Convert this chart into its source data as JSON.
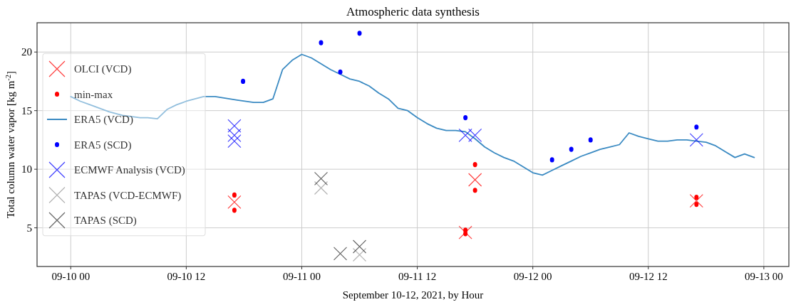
{
  "chart_data": {
    "type": "scatter",
    "title": "Atmospheric data synthesis",
    "xlabel": "September 10-12, 2021, by Hour",
    "ylabel": "Total column water vapor [kg m$^{-2}$]",
    "xlim": [
      "2021-09-09T20:30",
      "2021-09-13T02:36"
    ],
    "ylim": [
      1.7,
      22.5
    ],
    "xticks": [
      {
        "value": "2021-09-10T00:00",
        "label": "09-10 00"
      },
      {
        "value": "2021-09-10T12:00",
        "label": "09-10 12"
      },
      {
        "value": "2021-09-11T00:00",
        "label": "09-11 00"
      },
      {
        "value": "2021-09-11T12:00",
        "label": "09-11 12"
      },
      {
        "value": "2021-09-12T00:00",
        "label": "09-12 00"
      },
      {
        "value": "2021-09-12T12:00",
        "label": "09-12 12"
      },
      {
        "value": "2021-09-13T00:00",
        "label": "09-13 00"
      }
    ],
    "yticks": [
      5,
      10,
      15,
      20
    ],
    "grid": true,
    "legend": "left",
    "series": [
      {
        "name": "OLCI (VCD)",
        "marker": "cross",
        "color": "#ff0000",
        "x": [
          "2021-09-10T17:00",
          "2021-09-11T18:00",
          "2021-09-11T17:00",
          "2021-09-12T17:00"
        ],
        "values": [
          7.2,
          9.1,
          4.6,
          7.3
        ]
      },
      {
        "name": "min-max",
        "marker": "circle",
        "color": "#ff0000",
        "x": [
          "2021-09-10T17:00",
          "2021-09-10T17:00",
          "2021-09-11T18:00",
          "2021-09-11T18:00",
          "2021-09-11T17:00",
          "2021-09-11T17:00",
          "2021-09-12T17:00",
          "2021-09-12T17:00"
        ],
        "values": [
          7.8,
          6.5,
          10.4,
          8.2,
          4.8,
          4.5,
          7.6,
          7.0
        ]
      },
      {
        "name": "ERA5 (VCD)",
        "type": "line",
        "marker": "none",
        "line_style": "solid",
        "color": "#3a8ac2",
        "x": [
          "2021-09-10T00:00",
          "2021-09-10T01:00",
          "2021-09-10T02:00",
          "2021-09-10T03:00",
          "2021-09-10T04:00",
          "2021-09-10T05:24",
          "2021-09-10T07:12",
          "2021-09-10T08:00",
          "2021-09-10T09:00",
          "2021-09-10T10:00",
          "2021-09-10T11:00",
          "2021-09-10T12:00",
          "2021-09-10T13:48",
          "2021-09-10T15:00",
          "2021-09-10T17:18",
          "2021-09-10T19:00",
          "2021-09-10T20:00",
          "2021-09-10T21:00",
          "2021-09-10T22:00",
          "2021-09-10T23:00",
          "2021-09-11T00:00",
          "2021-09-11T01:00",
          "2021-09-11T02:00",
          "2021-09-11T03:00",
          "2021-09-11T04:00",
          "2021-09-11T05:00",
          "2021-09-11T06:00",
          "2021-09-11T07:00",
          "2021-09-11T08:00",
          "2021-09-11T09:00",
          "2021-09-11T10:00",
          "2021-09-11T11:00",
          "2021-09-11T12:00",
          "2021-09-11T13:00",
          "2021-09-11T14:00",
          "2021-09-11T15:00",
          "2021-09-11T16:00",
          "2021-09-11T17:00",
          "2021-09-11T18:00",
          "2021-09-11T19:00",
          "2021-09-11T20:00",
          "2021-09-11T21:00",
          "2021-09-11T22:00",
          "2021-09-11T23:00",
          "2021-09-12T00:00",
          "2021-09-12T01:00",
          "2021-09-12T02:00",
          "2021-09-12T03:00",
          "2021-09-12T04:00",
          "2021-09-12T05:00",
          "2021-09-12T06:00",
          "2021-09-12T07:00",
          "2021-09-12T08:00",
          "2021-09-12T09:00",
          "2021-09-12T10:00",
          "2021-09-12T11:00",
          "2021-09-12T12:00",
          "2021-09-12T13:00",
          "2021-09-12T14:00",
          "2021-09-12T15:00",
          "2021-09-12T16:00",
          "2021-09-12T17:00",
          "2021-09-12T18:00",
          "2021-09-12T19:00",
          "2021-09-12T20:00",
          "2021-09-12T21:00",
          "2021-09-12T22:00",
          "2021-09-12T23:00"
        ],
        "values": [
          16.2,
          15.8,
          15.5,
          15.2,
          14.9,
          14.6,
          14.4,
          14.4,
          14.3,
          15.1,
          15.5,
          15.8,
          16.2,
          16.2,
          15.9,
          15.7,
          15.7,
          16.0,
          18.5,
          19.3,
          19.8,
          19.5,
          19.0,
          18.5,
          18.1,
          17.7,
          17.5,
          17.1,
          16.5,
          16.0,
          15.2,
          15.0,
          14.4,
          13.9,
          13.5,
          13.3,
          13.3,
          13.2,
          12.6,
          11.9,
          11.4,
          11.0,
          10.7,
          10.2,
          9.7,
          9.5,
          9.9,
          10.3,
          10.7,
          11.1,
          11.4,
          11.7,
          11.9,
          12.1,
          13.1,
          12.8,
          12.6,
          12.4,
          12.4,
          12.5,
          12.5,
          12.4,
          12.3,
          12.0,
          11.5,
          11.0,
          11.3,
          11.0
        ]
      },
      {
        "name": "ERA5 (SCD)",
        "marker": "circle",
        "color": "#0000ff",
        "x": [
          "2021-09-10T17:54",
          "2021-09-11T02:00",
          "2021-09-11T04:00",
          "2021-09-11T06:00",
          "2021-09-11T17:00",
          "2021-09-12T02:00",
          "2021-09-12T04:00",
          "2021-09-12T06:00",
          "2021-09-12T17:00"
        ],
        "values": [
          17.5,
          20.8,
          18.3,
          21.6,
          14.4,
          10.8,
          11.7,
          12.5,
          13.6
        ]
      },
      {
        "name": "ECMWF Analysis (VCD)",
        "marker": "cross",
        "color": "#0000ff",
        "x": [
          "2021-09-10T17:00",
          "2021-09-10T17:00",
          "2021-09-10T17:00",
          "2021-09-11T17:00",
          "2021-09-11T18:00",
          "2021-09-12T17:00"
        ],
        "values": [
          13.7,
          12.9,
          12.4,
          12.9,
          12.9,
          12.5
        ]
      },
      {
        "name": "TAPAS (VCD-ECMWF)",
        "marker": "cross",
        "color": "#999999",
        "x": [
          "2021-09-11T02:00",
          "2021-09-11T06:00"
        ],
        "values": [
          8.4,
          2.7
        ]
      },
      {
        "name": "TAPAS (SCD)",
        "marker": "cross",
        "color": "#333333",
        "x": [
          "2021-09-11T02:00",
          "2021-09-11T04:00",
          "2021-09-11T06:00"
        ],
        "values": [
          9.2,
          2.8,
          3.4
        ]
      }
    ]
  }
}
